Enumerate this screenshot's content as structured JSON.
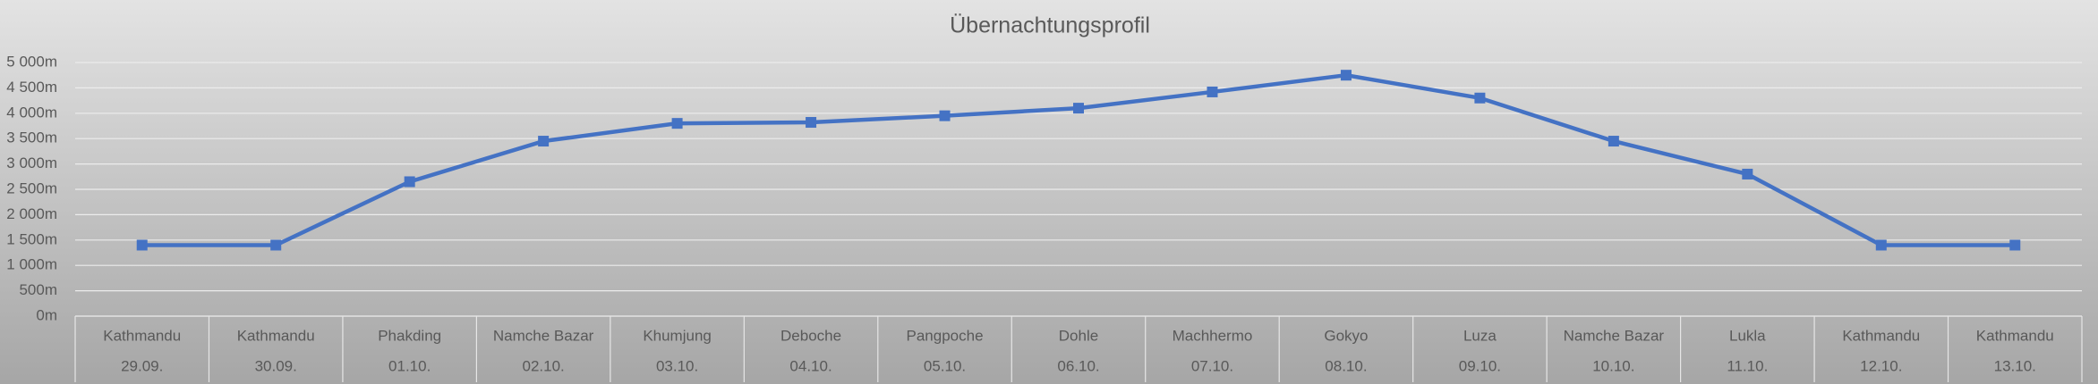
{
  "chart_data": {
    "type": "line",
    "title": "Übernachtungsprofil",
    "categories": [
      "Kathmandu",
      "Kathmandu",
      "Phakding",
      "Namche Bazar",
      "Khumjung",
      "Deboche",
      "Pangpoche",
      "Dohle",
      "Machhermo",
      "Gokyo",
      "Luza",
      "Namche Bazar",
      "Lukla",
      "Kathmandu",
      "Kathmandu"
    ],
    "dates": [
      "29.09.",
      "30.09.",
      "01.10.",
      "02.10.",
      "03.10.",
      "04.10.",
      "05.10.",
      "06.10.",
      "07.10.",
      "08.10.",
      "09.10.",
      "10.10.",
      "11.10.",
      "12.10.",
      "13.10."
    ],
    "series": [
      {
        "color": "#4472c4",
        "values": [
          1400,
          1400,
          2650,
          3450,
          3800,
          3820,
          3950,
          4100,
          4420,
          4750,
          4300,
          3450,
          2800,
          1400,
          1400
        ]
      }
    ],
    "ylim": [
      0,
      5000
    ],
    "yticks": [
      {
        "value": 0,
        "label": "0m"
      },
      {
        "value": 500,
        "label": "500m"
      },
      {
        "value": 1000,
        "label": "1 000m"
      },
      {
        "value": 1500,
        "label": "1 500m"
      },
      {
        "value": 2000,
        "label": "2 000m"
      },
      {
        "value": 2500,
        "label": "2 500m"
      },
      {
        "value": 3000,
        "label": "3 000m"
      },
      {
        "value": 3500,
        "label": "3 500m"
      },
      {
        "value": 4000,
        "label": "4 000m"
      },
      {
        "value": 4500,
        "label": "4 500m"
      },
      {
        "value": 5000,
        "label": "5 000m"
      }
    ],
    "grid": true
  }
}
